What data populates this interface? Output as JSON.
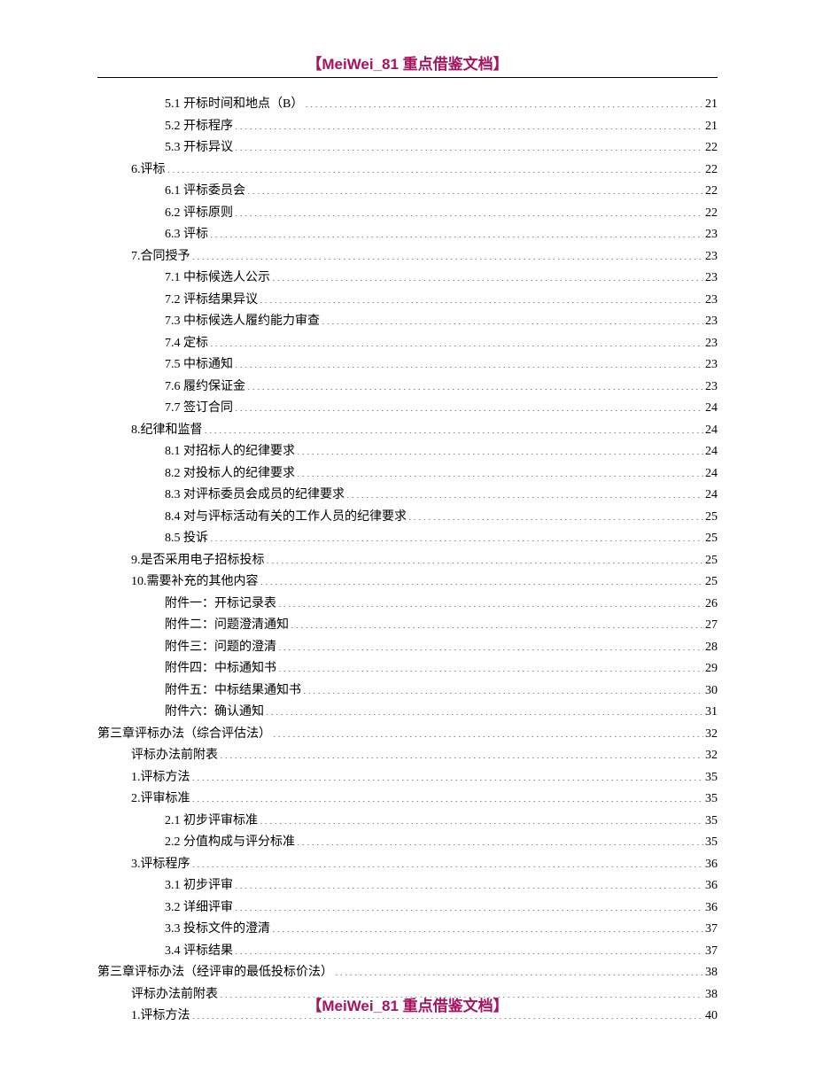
{
  "header": {
    "title": "【MeiWei_81 重点借鉴文档】"
  },
  "footer": {
    "title": "【MeiWei_81 重点借鉴文档】"
  },
  "colors": {
    "brand": "#a6135f",
    "text": "#000000",
    "background": "#ffffff"
  },
  "toc": {
    "entries": [
      {
        "indent": 2,
        "label": "5.1 开标时间和地点（B）",
        "page": "21"
      },
      {
        "indent": 2,
        "label": "5.2 开标程序",
        "page": "21"
      },
      {
        "indent": 2,
        "label": "5.3 开标异议",
        "page": "22"
      },
      {
        "indent": 1,
        "label": "6.评标",
        "page": "22"
      },
      {
        "indent": 2,
        "label": "6.1 评标委员会",
        "page": "22"
      },
      {
        "indent": 2,
        "label": "6.2 评标原则",
        "page": "22"
      },
      {
        "indent": 2,
        "label": "6.3 评标",
        "page": "23"
      },
      {
        "indent": 1,
        "label": "7.合同授予",
        "page": "23"
      },
      {
        "indent": 2,
        "label": "7.1 中标候选人公示",
        "page": "23"
      },
      {
        "indent": 2,
        "label": "7.2 评标结果异议",
        "page": "23"
      },
      {
        "indent": 2,
        "label": "7.3 中标候选人履约能力审查",
        "page": "23"
      },
      {
        "indent": 2,
        "label": "7.4 定标",
        "page": "23"
      },
      {
        "indent": 2,
        "label": "7.5 中标通知",
        "page": "23"
      },
      {
        "indent": 2,
        "label": "7.6 履约保证金",
        "page": "23"
      },
      {
        "indent": 2,
        "label": "7.7 签订合同",
        "page": "24"
      },
      {
        "indent": 1,
        "label": "8.纪律和监督",
        "page": "24"
      },
      {
        "indent": 2,
        "label": "8.1 对招标人的纪律要求",
        "page": "24"
      },
      {
        "indent": 2,
        "label": "8.2 对投标人的纪律要求",
        "page": "24"
      },
      {
        "indent": 2,
        "label": "8.3 对评标委员会成员的纪律要求",
        "page": "24"
      },
      {
        "indent": 2,
        "label": "8.4 对与评标活动有关的工作人员的纪律要求",
        "page": "25"
      },
      {
        "indent": 2,
        "label": "8.5 投诉",
        "page": "25"
      },
      {
        "indent": 1,
        "label": "9.是否采用电子招标投标",
        "page": "25"
      },
      {
        "indent": 1,
        "label": "10.需要补充的其他内容",
        "page": "25"
      },
      {
        "indent": 3,
        "label": "附件一：开标记录表",
        "page": "26"
      },
      {
        "indent": 3,
        "label": "附件二：问题澄清通知",
        "page": "27"
      },
      {
        "indent": 3,
        "label": "附件三：问题的澄清",
        "page": "28"
      },
      {
        "indent": 3,
        "label": "附件四：中标通知书",
        "page": "29"
      },
      {
        "indent": 3,
        "label": "附件五：中标结果通知书",
        "page": "30"
      },
      {
        "indent": 3,
        "label": "附件六：确认通知",
        "page": "31"
      },
      {
        "indent": 0,
        "label": "第三章评标办法（综合评估法）",
        "page": "32"
      },
      {
        "indent": 1,
        "label": "评标办法前附表",
        "page": "32"
      },
      {
        "indent": 1,
        "label": "1.评标方法",
        "page": "35"
      },
      {
        "indent": 1,
        "label": "2.评审标准",
        "page": "35"
      },
      {
        "indent": 2,
        "label": "2.1 初步评审标准",
        "page": "35"
      },
      {
        "indent": 2,
        "label": "2.2 分值构成与评分标准",
        "page": "35"
      },
      {
        "indent": 1,
        "label": "3.评标程序",
        "page": "36"
      },
      {
        "indent": 2,
        "label": "3.1 初步评审",
        "page": "36"
      },
      {
        "indent": 2,
        "label": "3.2 详细评审",
        "page": "36"
      },
      {
        "indent": 2,
        "label": "3.3 投标文件的澄清",
        "page": "37"
      },
      {
        "indent": 2,
        "label": "3.4 评标结果",
        "page": "37"
      },
      {
        "indent": 0,
        "label": "第三章评标办法（经评审的最低投标价法）",
        "page": "38"
      },
      {
        "indent": 1,
        "label": "评标办法前附表",
        "page": "38"
      },
      {
        "indent": 1,
        "label": "1.评标方法",
        "page": "40"
      }
    ]
  }
}
